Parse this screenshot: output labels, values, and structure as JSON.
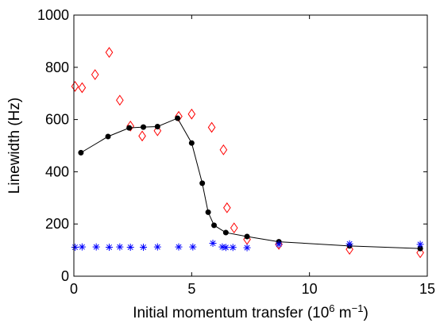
{
  "chart_data": {
    "type": "scatter",
    "xlabel": "Initial momentum transfer (10",
    "xlabel_sup1": "6",
    "xlabel_mid": " m",
    "xlabel_sup2": "−1",
    "xlabel_end": ")",
    "ylabel": "Linewidth (Hz)",
    "xlim": [
      0,
      15
    ],
    "ylim": [
      0,
      1000
    ],
    "xticks": [
      0,
      5,
      10,
      15
    ],
    "yticks": [
      0,
      200,
      400,
      600,
      800,
      1000
    ],
    "xtick_labels": [
      "0",
      "5",
      "10",
      "15"
    ],
    "ytick_labels": [
      "0",
      "200",
      "400",
      "600",
      "800",
      "1000"
    ],
    "grid": false,
    "series": [
      {
        "marker": "diamond",
        "color": "#ff0000",
        "x": [
          0.05,
          0.35,
          0.9,
          1.5,
          1.95,
          2.4,
          2.9,
          3.55,
          4.45,
          5.0,
          5.85,
          6.35,
          6.5,
          6.8,
          7.35,
          8.7,
          11.7,
          14.7
        ],
        "y": [
          727,
          722,
          772,
          857,
          674,
          575,
          537,
          557,
          612,
          621,
          570,
          484,
          262,
          185,
          141,
          122,
          103,
          90
        ]
      },
      {
        "marker": "dot-line",
        "color": "#000000",
        "x": [
          0.3,
          1.45,
          2.35,
          2.95,
          3.55,
          4.4,
          5.0,
          5.45,
          5.7,
          5.95,
          6.45,
          7.35,
          8.7,
          11.7,
          14.7
        ],
        "y": [
          473,
          535,
          568,
          571,
          573,
          605,
          510,
          356,
          245,
          195,
          167,
          152,
          132,
          116,
          106
        ]
      },
      {
        "marker": "asterisk",
        "color": "#0000ff",
        "x": [
          0.05,
          0.35,
          0.95,
          1.5,
          1.95,
          2.4,
          2.95,
          3.55,
          4.45,
          5.05,
          5.9,
          6.3,
          6.45,
          6.75,
          7.35,
          8.7,
          11.7,
          14.7
        ],
        "y": [
          111,
          112,
          112,
          111,
          112,
          111,
          111,
          112,
          112,
          112,
          126,
          112,
          110,
          110,
          109,
          122,
          124,
          122
        ]
      }
    ]
  }
}
